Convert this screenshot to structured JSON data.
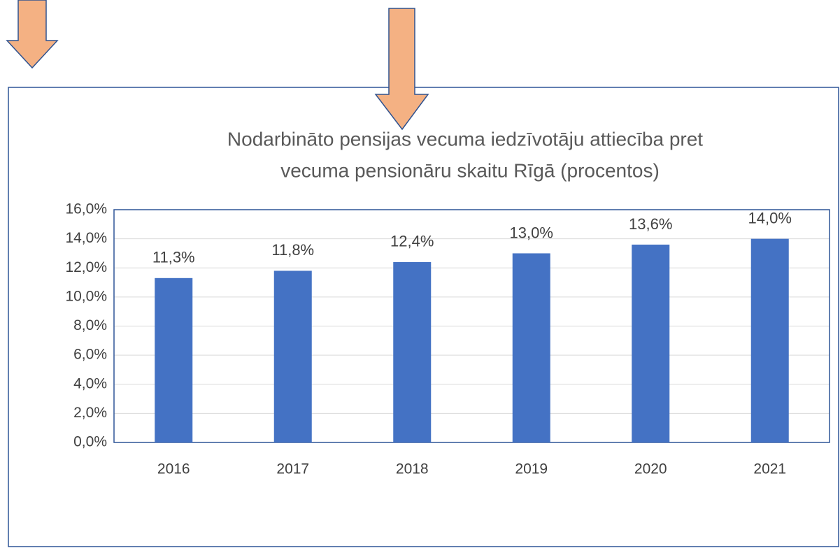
{
  "chart_data": {
    "type": "bar",
    "title": "Nodarbināto pensijas vecuma iedzīvotāju attiecība pret",
    "subtitle": "vecuma pensionāru skaitu Rīgā (procentos)",
    "categories": [
      "2016",
      "2017",
      "2018",
      "2019",
      "2020",
      "2021"
    ],
    "values": [
      11.3,
      11.8,
      12.4,
      13.0,
      13.6,
      14.0
    ],
    "value_labels": [
      "11,3%",
      "11,8%",
      "12,4%",
      "13,0%",
      "13,6%",
      "14,0%"
    ],
    "color": "#4472c4",
    "ylim": [
      0,
      16
    ],
    "yticks": [
      {
        "value": 0,
        "label": "0,0%"
      },
      {
        "value": 2,
        "label": "2,0%"
      },
      {
        "value": 4,
        "label": "4,0%"
      },
      {
        "value": 6,
        "label": "6,0%"
      },
      {
        "value": 8,
        "label": "8,0%"
      },
      {
        "value": 10,
        "label": "10,0%"
      },
      {
        "value": 12,
        "label": "12,0%"
      },
      {
        "value": 14,
        "label": "14,0%"
      },
      {
        "value": 16,
        "label": "16,0%"
      }
    ],
    "grid": true
  }
}
